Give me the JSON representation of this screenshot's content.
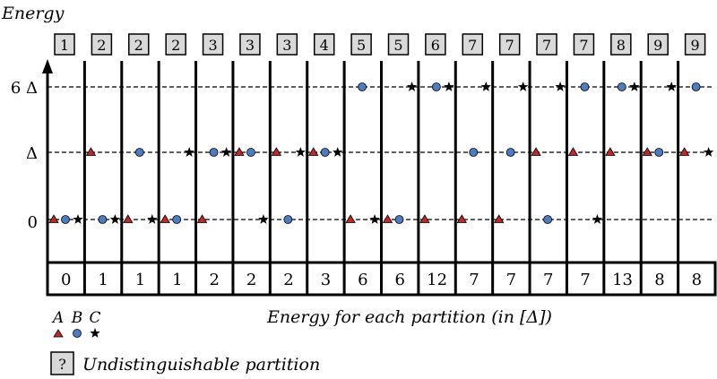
{
  "energy_axis_label": "Energy",
  "energy_levels": [
    {
      "label": "0",
      "value": 0
    },
    {
      "label": "Δ",
      "value": 1
    },
    {
      "label": "6 Δ",
      "value": 6
    }
  ],
  "partitions": [
    {
      "id": "1",
      "energy": "0",
      "A": 0,
      "B": 0,
      "C": 0
    },
    {
      "id": "2",
      "energy": "1",
      "A": 1,
      "B": 0,
      "C": 0
    },
    {
      "id": "2",
      "energy": "1",
      "A": 0,
      "B": 1,
      "C": 0
    },
    {
      "id": "2",
      "energy": "1",
      "A": 0,
      "B": 0,
      "C": 1
    },
    {
      "id": "3",
      "energy": "2",
      "A": 0,
      "B": 1,
      "C": 1
    },
    {
      "id": "3",
      "energy": "2",
      "A": 1,
      "B": 1,
      "C": 0
    },
    {
      "id": "3",
      "energy": "2",
      "A": 1,
      "B": 0,
      "C": 1
    },
    {
      "id": "4",
      "energy": "3",
      "A": 1,
      "B": 1,
      "C": 1
    },
    {
      "id": "5",
      "energy": "6",
      "A": 0,
      "B": 6,
      "C": 0
    },
    {
      "id": "5",
      "energy": "6",
      "A": 0,
      "B": 0,
      "C": 6
    },
    {
      "id": "6",
      "energy": "12",
      "A": 0,
      "B": 6,
      "C": 6
    },
    {
      "id": "7",
      "energy": "7",
      "A": 0,
      "B": 1,
      "C": 6
    },
    {
      "id": "7",
      "energy": "7",
      "A": 0,
      "B": 1,
      "C": 6
    },
    {
      "id": "7",
      "energy": "7",
      "A": 1,
      "B": 0,
      "C": 6
    },
    {
      "id": "7",
      "energy": "7",
      "A": 1,
      "B": 6,
      "C": 0
    },
    {
      "id": "8",
      "energy": "13",
      "A": 1,
      "B": 6,
      "C": 6
    },
    {
      "id": "9",
      "energy": "8",
      "A": 1,
      "B": 1,
      "C": 6
    },
    {
      "id": "9",
      "energy": "8",
      "A": 1,
      "B": 6,
      "C": 1
    }
  ],
  "energy_row_caption": "Energy for each partition (in [Δ])",
  "legend": {
    "labels": [
      "A",
      "B",
      "C"
    ],
    "box_symbol": "?",
    "box_text": "Undistinguishable partition"
  },
  "colors": {
    "A": "#c0272d",
    "B": "#4f7cc0",
    "C": "#000000",
    "box_fill": "#d9d9d9"
  }
}
